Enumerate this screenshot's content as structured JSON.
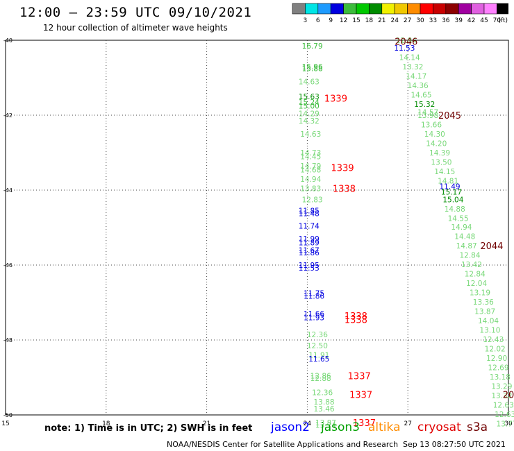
{
  "title": "12:00 – 23:59 UTC 09/10/2021",
  "subtitle": "12 hour collection of altimeter wave heights",
  "note": "note:  1) Time is in UTC; 2) SWH is in feet",
  "credit": "NOAA/NESDIS Center for Satellite Applications and Research",
  "timestamp": "Sep 13 08:27:50 UTC 2021",
  "colorbar": {
    "labels": [
      "3",
      "6",
      "9",
      "12",
      "15",
      "18",
      "21",
      "24",
      "27",
      "30",
      "33",
      "36",
      "39",
      "42",
      "45",
      "70"
    ],
    "unit": "(ft)",
    "colors": [
      "#808080",
      "#00e5e5",
      "#1e9bff",
      "#0000e0",
      "#3cbc3c",
      "#00c800",
      "#008c00",
      "#f0f000",
      "#f0c800",
      "#ff8c00",
      "#ff0000",
      "#c80000",
      "#8c0000",
      "#a000a0",
      "#e060e0",
      "#ff80ff",
      "#000000"
    ]
  },
  "legend": [
    {
      "name": "jason2",
      "color": "#0000ff"
    },
    {
      "name": "jason3",
      "color": "#00a000"
    },
    {
      "name": "altika",
      "color": "#ff8c00"
    },
    {
      "name": "cryosat",
      "color": "#e00000"
    },
    {
      "name": "s3a",
      "color": "#700000"
    }
  ],
  "chart_data": {
    "type": "scatter",
    "xlim": [
      15,
      30
    ],
    "ylim": [
      -50,
      -40
    ],
    "xticks": [
      {
        "v": 15,
        "l": "15"
      },
      {
        "v": 18,
        "l": "18"
      },
      {
        "v": 21,
        "l": "21"
      },
      {
        "v": 24,
        "l": "24"
      },
      {
        "v": 27,
        "l": "27"
      },
      {
        "v": 30,
        "l": "30"
      }
    ],
    "yticks": [
      {
        "v": -40,
        "l": "-40"
      },
      {
        "v": -42,
        "l": "-42"
      },
      {
        "v": -44,
        "l": "-44"
      },
      {
        "v": -46,
        "l": "-46"
      },
      {
        "v": -48,
        "l": "-48"
      },
      {
        "v": -50,
        "l": "-50"
      }
    ],
    "grid": true,
    "swh_points": [
      {
        "x": 24.15,
        "y": -40.15,
        "t": "16.79",
        "c": "#3cbc3c"
      },
      {
        "x": 24.15,
        "y": -40.7,
        "t": "15.96",
        "c": "#3cbc3c"
      },
      {
        "x": 24.15,
        "y": -40.75,
        "t": "15.88",
        "c": "#3cbc3c"
      },
      {
        "x": 24.05,
        "y": -41.1,
        "t": "14.63",
        "c": "#78d878"
      },
      {
        "x": 24.05,
        "y": -41.5,
        "t": "15.63",
        "c": "#008c00"
      },
      {
        "x": 24.05,
        "y": -41.65,
        "t": "15.24",
        "c": "#3cbc3c"
      },
      {
        "x": 24.05,
        "y": -41.75,
        "t": "15.00",
        "c": "#3cbc3c"
      },
      {
        "x": 24.05,
        "y": -41.95,
        "t": "14.29",
        "c": "#78d878"
      },
      {
        "x": 24.05,
        "y": -42.15,
        "t": "14.32",
        "c": "#78d878"
      },
      {
        "x": 24.1,
        "y": -42.5,
        "t": "14.63",
        "c": "#78d878"
      },
      {
        "x": 24.1,
        "y": -43.0,
        "t": "14.73",
        "c": "#78d878"
      },
      {
        "x": 24.1,
        "y": -43.1,
        "t": "14.45",
        "c": "#78d878"
      },
      {
        "x": 24.1,
        "y": -43.35,
        "t": "14.79",
        "c": "#78d878"
      },
      {
        "x": 24.1,
        "y": -43.45,
        "t": "14.68",
        "c": "#78d878"
      },
      {
        "x": 24.1,
        "y": -43.7,
        "t": "14.94",
        "c": "#78d878"
      },
      {
        "x": 24.1,
        "y": -43.95,
        "t": "13.83",
        "c": "#78d878"
      },
      {
        "x": 24.15,
        "y": -44.25,
        "t": "12.83",
        "c": "#78d878"
      },
      {
        "x": 24.05,
        "y": -44.55,
        "t": "11.85",
        "c": "#0000e0"
      },
      {
        "x": 24.05,
        "y": -44.62,
        "t": "11.48",
        "c": "#0000e0"
      },
      {
        "x": 24.05,
        "y": -44.95,
        "t": "11.74",
        "c": "#0000e0"
      },
      {
        "x": 24.05,
        "y": -45.3,
        "t": "11.99",
        "c": "#0000e0"
      },
      {
        "x": 24.05,
        "y": -45.4,
        "t": "11.89",
        "c": "#0000e0"
      },
      {
        "x": 24.05,
        "y": -45.6,
        "t": "11.67",
        "c": "#0000e0"
      },
      {
        "x": 24.05,
        "y": -45.67,
        "t": "11.86",
        "c": "#0000e0"
      },
      {
        "x": 24.05,
        "y": -46.0,
        "t": "11.95",
        "c": "#0000e0"
      },
      {
        "x": 24.05,
        "y": -46.07,
        "t": "11.53",
        "c": "#0000e0"
      },
      {
        "x": 24.2,
        "y": -46.75,
        "t": "11.75",
        "c": "#0000e0"
      },
      {
        "x": 24.2,
        "y": -46.82,
        "t": "11.86",
        "c": "#0000e0"
      },
      {
        "x": 24.2,
        "y": -47.3,
        "t": "11.66",
        "c": "#0000e0"
      },
      {
        "x": 24.2,
        "y": -47.4,
        "t": "11.93",
        "c": "#0000e0"
      },
      {
        "x": 24.3,
        "y": -47.85,
        "t": "12.36",
        "c": "#78d878"
      },
      {
        "x": 24.3,
        "y": -48.15,
        "t": "12.50",
        "c": "#78d878"
      },
      {
        "x": 24.35,
        "y": -48.4,
        "t": "11.91",
        "c": "#78d878"
      },
      {
        "x": 24.35,
        "y": -48.5,
        "t": "11.65",
        "c": "#0000e0"
      },
      {
        "x": 24.4,
        "y": -48.95,
        "t": "12.86",
        "c": "#78d878"
      },
      {
        "x": 24.4,
        "y": -49.02,
        "t": "12.88",
        "c": "#78d878"
      },
      {
        "x": 24.45,
        "y": -49.4,
        "t": "12.36",
        "c": "#78d878"
      },
      {
        "x": 24.5,
        "y": -49.65,
        "t": "13.88",
        "c": "#78d878"
      },
      {
        "x": 24.5,
        "y": -49.83,
        "t": "13.46",
        "c": "#78d878"
      },
      {
        "x": 24.55,
        "y": -50.2,
        "t": "13.87",
        "c": "#78d878"
      },
      {
        "x": 24.55,
        "y": -50.27,
        "t": "13.74",
        "c": "#78d878"
      },
      {
        "x": 26.95,
        "y": -40.0,
        "t": "12.84",
        "c": "#78d878"
      },
      {
        "x": 26.9,
        "y": -40.2,
        "t": "11.53",
        "c": "#0000e0"
      },
      {
        "x": 27.05,
        "y": -40.45,
        "t": "14.14",
        "c": "#78d878"
      },
      {
        "x": 27.15,
        "y": -40.7,
        "t": "13.32",
        "c": "#78d878"
      },
      {
        "x": 27.25,
        "y": -40.95,
        "t": "14.17",
        "c": "#78d878"
      },
      {
        "x": 27.3,
        "y": -41.2,
        "t": "14.36",
        "c": "#78d878"
      },
      {
        "x": 27.4,
        "y": -41.45,
        "t": "14.65",
        "c": "#78d878"
      },
      {
        "x": 27.5,
        "y": -41.7,
        "t": "15.32",
        "c": "#008c00"
      },
      {
        "x": 27.6,
        "y": -41.92,
        "t": "14.57",
        "c": "#78d878"
      },
      {
        "x": 27.6,
        "y": -42.0,
        "t": "13.98",
        "c": "#78d878"
      },
      {
        "x": 27.7,
        "y": -42.25,
        "t": "13.66",
        "c": "#78d878"
      },
      {
        "x": 27.8,
        "y": -42.5,
        "t": "14.30",
        "c": "#78d878"
      },
      {
        "x": 27.85,
        "y": -42.75,
        "t": "14.20",
        "c": "#78d878"
      },
      {
        "x": 27.95,
        "y": -43.0,
        "t": "14.39",
        "c": "#78d878"
      },
      {
        "x": 28.0,
        "y": -43.25,
        "t": "13.50",
        "c": "#78d878"
      },
      {
        "x": 28.1,
        "y": -43.5,
        "t": "14.15",
        "c": "#78d878"
      },
      {
        "x": 28.2,
        "y": -43.75,
        "t": "14.81",
        "c": "#78d878"
      },
      {
        "x": 28.25,
        "y": -43.9,
        "t": "11.49",
        "c": "#0000e0"
      },
      {
        "x": 28.3,
        "y": -44.05,
        "t": "15.17",
        "c": "#008c00"
      },
      {
        "x": 28.35,
        "y": -44.25,
        "t": "15.04",
        "c": "#008c00"
      },
      {
        "x": 28.4,
        "y": -44.5,
        "t": "14.88",
        "c": "#78d878"
      },
      {
        "x": 28.5,
        "y": -44.75,
        "t": "14.55",
        "c": "#78d878"
      },
      {
        "x": 28.6,
        "y": -44.98,
        "t": "14.94",
        "c": "#78d878"
      },
      {
        "x": 28.7,
        "y": -45.23,
        "t": "14.48",
        "c": "#78d878"
      },
      {
        "x": 28.75,
        "y": -45.48,
        "t": "14.87",
        "c": "#78d878"
      },
      {
        "x": 28.85,
        "y": -45.73,
        "t": "12.84",
        "c": "#78d878"
      },
      {
        "x": 28.9,
        "y": -45.98,
        "t": "13.42",
        "c": "#78d878"
      },
      {
        "x": 29.0,
        "y": -46.23,
        "t": "12.84",
        "c": "#78d878"
      },
      {
        "x": 29.05,
        "y": -46.48,
        "t": "12.04",
        "c": "#78d878"
      },
      {
        "x": 29.15,
        "y": -46.73,
        "t": "13.19",
        "c": "#78d878"
      },
      {
        "x": 29.25,
        "y": -46.98,
        "t": "13.36",
        "c": "#78d878"
      },
      {
        "x": 29.3,
        "y": -47.23,
        "t": "13.87",
        "c": "#78d878"
      },
      {
        "x": 29.4,
        "y": -47.48,
        "t": "14.04",
        "c": "#78d878"
      },
      {
        "x": 29.45,
        "y": -47.73,
        "t": "13.10",
        "c": "#78d878"
      },
      {
        "x": 29.55,
        "y": -47.98,
        "t": "12.43",
        "c": "#78d878"
      },
      {
        "x": 29.6,
        "y": -48.23,
        "t": "12.02",
        "c": "#78d878"
      },
      {
        "x": 29.65,
        "y": -48.48,
        "t": "12.90",
        "c": "#78d878"
      },
      {
        "x": 29.7,
        "y": -48.73,
        "t": "12.69",
        "c": "#78d878"
      },
      {
        "x": 29.75,
        "y": -48.98,
        "t": "13.18",
        "c": "#78d878"
      },
      {
        "x": 29.8,
        "y": -49.23,
        "t": "13.29",
        "c": "#78d878"
      },
      {
        "x": 29.8,
        "y": -49.48,
        "t": "13.32",
        "c": "#78d878"
      },
      {
        "x": 29.85,
        "y": -49.73,
        "t": "12.63",
        "c": "#78d878"
      },
      {
        "x": 29.9,
        "y": -49.98,
        "t": "12.63",
        "c": "#78d878"
      },
      {
        "x": 29.95,
        "y": -50.23,
        "t": "13.77",
        "c": "#78d878"
      }
    ],
    "time_labels": [
      {
        "x": 24.85,
        "y": -41.55,
        "t": "1339",
        "c": "#ff0000"
      },
      {
        "x": 25.05,
        "y": -43.4,
        "t": "1339",
        "c": "#ff0000"
      },
      {
        "x": 25.1,
        "y": -43.95,
        "t": "1338",
        "c": "#ff0000"
      },
      {
        "x": 25.45,
        "y": -47.35,
        "t": "1338",
        "c": "#ff0000"
      },
      {
        "x": 25.45,
        "y": -47.45,
        "t": "1338",
        "c": "#ff0000"
      },
      {
        "x": 25.55,
        "y": -48.95,
        "t": "1337",
        "c": "#ff0000"
      },
      {
        "x": 25.6,
        "y": -49.45,
        "t": "1337",
        "c": "#ff0000"
      },
      {
        "x": 25.7,
        "y": -50.2,
        "t": "1337",
        "c": "#ff0000"
      },
      {
        "x": 26.95,
        "y": -40.03,
        "t": "2046",
        "c": "#700000"
      },
      {
        "x": 28.25,
        "y": -42.0,
        "t": "2045",
        "c": "#700000"
      },
      {
        "x": 29.5,
        "y": -45.48,
        "t": "2044",
        "c": "#700000"
      },
      {
        "x": 30.0,
        "y": -49.45,
        "t": "20",
        "c": "#700000"
      }
    ]
  }
}
